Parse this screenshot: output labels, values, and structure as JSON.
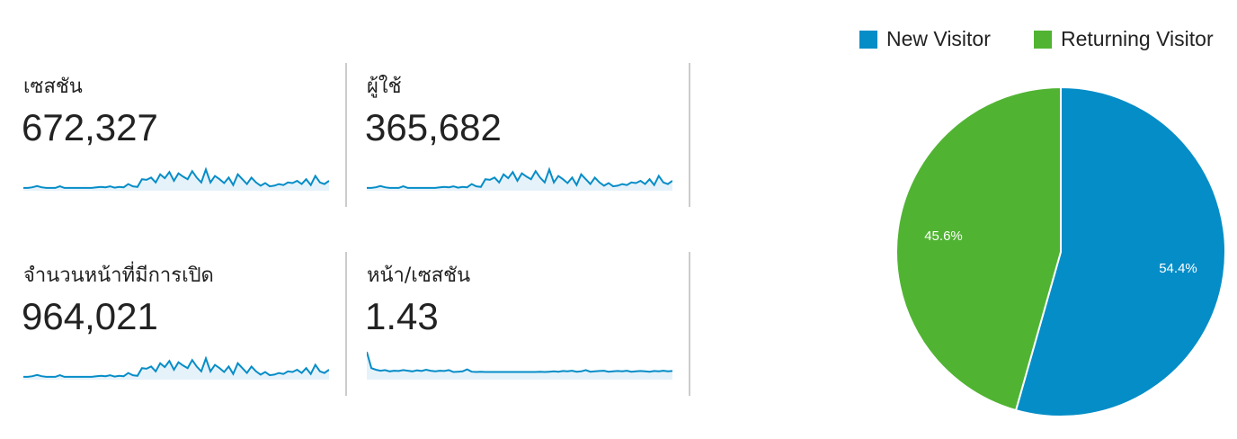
{
  "metrics": [
    {
      "label": "เซสชัน",
      "value": "672,327",
      "spark": [
        3,
        3,
        5,
        9,
        5,
        3,
        3,
        3,
        8,
        3,
        3,
        3,
        3,
        3,
        3,
        3,
        5,
        6,
        5,
        8,
        4,
        6,
        5,
        15,
        8,
        6,
        30,
        28,
        35,
        20,
        45,
        33,
        52,
        25,
        48,
        38,
        30,
        55,
        35,
        20,
        60,
        20,
        40,
        30,
        18,
        35,
        12,
        45,
        30,
        15,
        35,
        20,
        10,
        18,
        8,
        10,
        15,
        12,
        20,
        18,
        25,
        15,
        30,
        12,
        40,
        20,
        15,
        25
      ]
    },
    {
      "label": "ผู้ใช้",
      "value": "365,682",
      "spark": [
        3,
        3,
        5,
        9,
        5,
        3,
        3,
        3,
        8,
        3,
        3,
        3,
        3,
        3,
        3,
        3,
        5,
        6,
        5,
        8,
        4,
        6,
        5,
        15,
        8,
        6,
        30,
        28,
        35,
        20,
        45,
        33,
        52,
        25,
        48,
        38,
        30,
        55,
        35,
        20,
        60,
        20,
        40,
        30,
        18,
        35,
        12,
        45,
        30,
        15,
        35,
        20,
        10,
        18,
        8,
        10,
        15,
        12,
        20,
        18,
        25,
        15,
        30,
        12,
        40,
        20,
        15,
        25
      ]
    },
    {
      "label": "จำนวนหน้าที่มีการเปิด",
      "value": "964,021",
      "spark": [
        3,
        3,
        5,
        9,
        5,
        3,
        3,
        3,
        8,
        3,
        3,
        3,
        3,
        3,
        3,
        3,
        5,
        6,
        5,
        8,
        4,
        6,
        5,
        15,
        8,
        6,
        30,
        28,
        35,
        20,
        45,
        33,
        52,
        25,
        48,
        38,
        30,
        55,
        35,
        20,
        60,
        20,
        40,
        30,
        18,
        35,
        12,
        45,
        30,
        15,
        35,
        20,
        10,
        18,
        8,
        10,
        15,
        12,
        20,
        18,
        25,
        15,
        30,
        12,
        40,
        20,
        15,
        25
      ]
    },
    {
      "label": "หน้า/เซสชัน",
      "value": "1.43",
      "spark": [
        80,
        30,
        25,
        22,
        24,
        20,
        22,
        21,
        24,
        22,
        20,
        23,
        21,
        25,
        22,
        20,
        22,
        21,
        24,
        18,
        19,
        20,
        26,
        19,
        18,
        19,
        18,
        18,
        18,
        18,
        18,
        18,
        18,
        18,
        18,
        18,
        18,
        18,
        19,
        18,
        19,
        20,
        19,
        21,
        20,
        22,
        19,
        20,
        24,
        19,
        20,
        21,
        22,
        19,
        20,
        21,
        20,
        22,
        19,
        20,
        21,
        20,
        19,
        21,
        20,
        22,
        20,
        21
      ]
    }
  ],
  "chart_data": {
    "type": "pie",
    "legend_position": "top",
    "slices": [
      {
        "name": "New Visitor",
        "value": 54.4,
        "label": "54.4%",
        "color": "#058dc7"
      },
      {
        "name": "Returning Visitor",
        "value": 45.6,
        "label": "45.6%",
        "color": "#50b432"
      }
    ]
  }
}
